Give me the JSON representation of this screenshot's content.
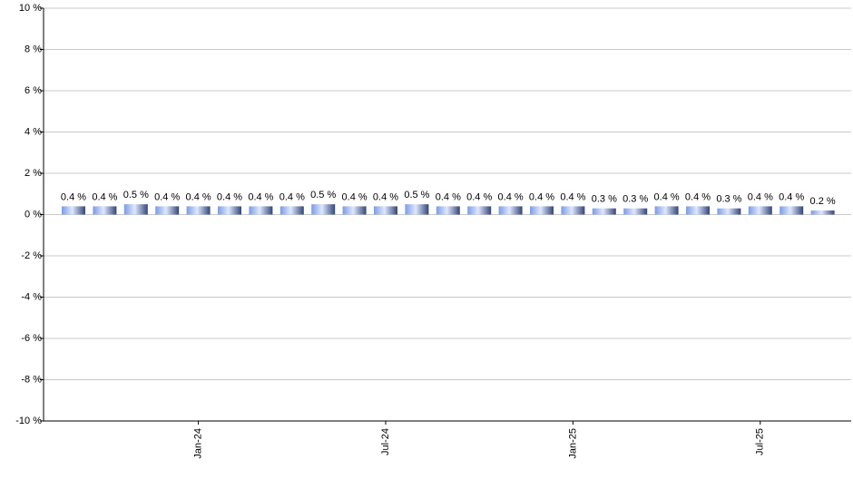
{
  "chart_data": {
    "type": "bar",
    "categories": [
      null,
      null,
      null,
      null,
      "Jan-24",
      null,
      null,
      null,
      null,
      null,
      "Jul-24",
      null,
      null,
      null,
      null,
      null,
      "Jan-25",
      null,
      null,
      null,
      null,
      null,
      "Jul-25",
      null,
      null
    ],
    "values": [
      0.4,
      0.4,
      0.5,
      0.4,
      0.4,
      0.4,
      0.4,
      0.4,
      0.5,
      0.4,
      0.4,
      0.5,
      0.4,
      0.4,
      0.4,
      0.4,
      0.4,
      0.3,
      0.3,
      0.4,
      0.4,
      0.3,
      0.4,
      0.4,
      0.2
    ],
    "value_labels": [
      "0.4 %",
      "0.4 %",
      "0.5 %",
      "0.4 %",
      "0.4 %",
      "0.4 %",
      "0.4 %",
      "0.4 %",
      "0.5 %",
      "0.4 %",
      "0.4 %",
      "0.5 %",
      "0.4 %",
      "0.4 %",
      "0.4 %",
      "0.4 %",
      "0.4 %",
      "0.3 %",
      "0.3 %",
      "0.4 %",
      "0.4 %",
      "0.3 %",
      "0.4 %",
      "0.4 %",
      "0.2 %"
    ],
    "color": "#7b9be6",
    "ylim": [
      -10,
      10
    ],
    "yticks": [
      {
        "value": -10,
        "label": "-10 %"
      },
      {
        "value": -8,
        "label": "-8 %"
      },
      {
        "value": -6,
        "label": "-6 %"
      },
      {
        "value": -4,
        "label": "-4 %"
      },
      {
        "value": -2,
        "label": "-2 %"
      },
      {
        "value": 0,
        "label": "0 %"
      },
      {
        "value": 2,
        "label": "2 %"
      },
      {
        "value": 4,
        "label": "4 %"
      },
      {
        "value": 6,
        "label": "6 %"
      },
      {
        "value": 8,
        "label": "8 %"
      },
      {
        "value": 10,
        "label": "10 %"
      }
    ],
    "grid": true
  }
}
